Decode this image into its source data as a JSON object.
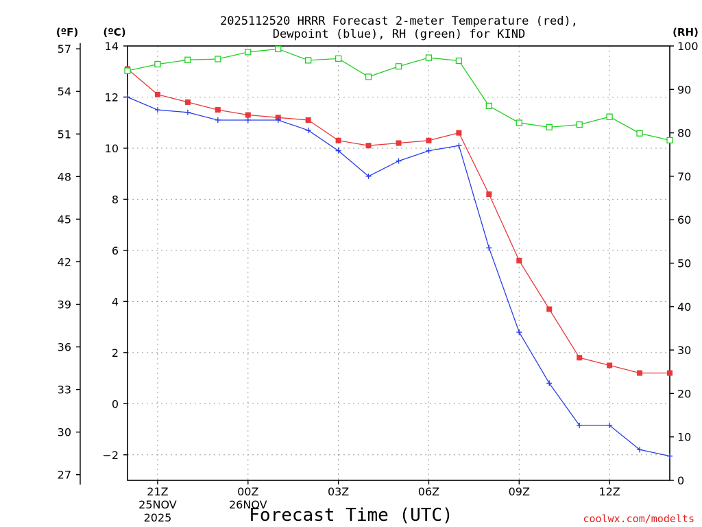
{
  "chart_data": {
    "type": "line",
    "title_line1": "2025112520 HRRR Forecast 2-meter Temperature (red),",
    "title_line2": "Dewpoint (blue), RH (green) for KIND",
    "xlabel": "Forecast Time (UTC)",
    "credit": "coolwx.com/modelts",
    "x_hours": [
      20,
      21,
      22,
      23,
      24,
      25,
      26,
      27,
      28,
      29,
      30,
      31,
      32,
      33,
      34,
      35,
      36,
      37,
      38
    ],
    "x_ticks": [
      {
        "hour": 21,
        "label": "21Z",
        "date": "25NOV",
        "year": "2025"
      },
      {
        "hour": 24,
        "label": "00Z",
        "date": "26NOV",
        "year": ""
      },
      {
        "hour": 27,
        "label": "03Z",
        "date": "",
        "year": ""
      },
      {
        "hour": 30,
        "label": "06Z",
        "date": "",
        "year": ""
      },
      {
        "hour": 33,
        "label": "09Z",
        "date": "",
        "year": ""
      },
      {
        "hour": 36,
        "label": "12Z",
        "date": "",
        "year": ""
      }
    ],
    "xlim": [
      20,
      38
    ],
    "celsius_axis": {
      "unit": "(ºC)",
      "ylim": [
        -3,
        14
      ],
      "ticks": [
        14,
        12,
        10,
        8,
        6,
        4,
        2,
        0,
        -2
      ]
    },
    "fahrenheit_axis": {
      "unit": "(ºF)",
      "ticks": [
        57,
        54,
        51,
        48,
        45,
        42,
        39,
        36,
        33,
        30,
        27
      ]
    },
    "rh_axis": {
      "unit": "(RH)",
      "ylim": [
        0,
        100
      ],
      "ticks": [
        100,
        90,
        80,
        70,
        60,
        50,
        40,
        30,
        20,
        10,
        0
      ]
    },
    "series": [
      {
        "name": "Temperature",
        "axis": "celsius",
        "color": "#e8383c",
        "marker": "filled-square",
        "values": [
          13.1,
          12.1,
          11.8,
          11.5,
          11.3,
          11.2,
          11.1,
          10.3,
          10.1,
          10.2,
          10.3,
          10.6,
          8.2,
          5.6,
          3.7,
          1.8,
          1.5,
          1.2,
          1.2
        ]
      },
      {
        "name": "Dewpoint",
        "axis": "celsius",
        "color": "#2a3ee8",
        "marker": "plus",
        "values": [
          12.0,
          11.5,
          11.4,
          11.1,
          11.1,
          11.1,
          10.7,
          9.9,
          8.9,
          9.5,
          9.9,
          10.1,
          6.1,
          2.8,
          0.8,
          -0.85,
          -0.85,
          -1.8,
          -2.05
        ]
      },
      {
        "name": "RH",
        "axis": "rh",
        "color": "#20d020",
        "marker": "open-square",
        "values": [
          94.3,
          95.8,
          96.8,
          97.0,
          98.6,
          99.3,
          96.7,
          97.1,
          92.9,
          95.3,
          97.3,
          96.6,
          86.2,
          82.3,
          81.3,
          81.9,
          83.7,
          79.9,
          78.3
        ]
      }
    ]
  }
}
